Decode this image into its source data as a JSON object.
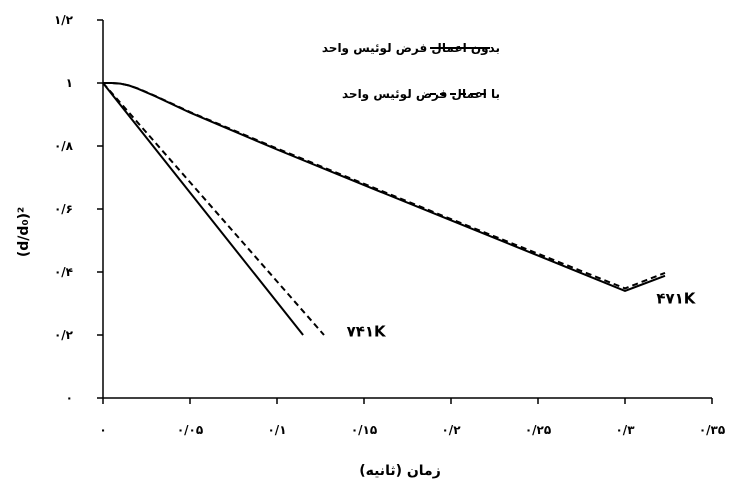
{
  "chart_data": {
    "type": "line",
    "xlabel": "زمان (ثانیه)",
    "ylabel": "(d/d₀)²",
    "xlim": [
      0,
      0.35
    ],
    "ylim": [
      0,
      1.2
    ],
    "x_ticks": [
      0,
      0.05,
      0.1,
      0.15,
      0.2,
      0.25,
      0.3,
      0.35
    ],
    "x_tick_labels": [
      "۰",
      "۰/۰۵",
      "۰/۱",
      "۰/۱۵",
      "۰/۲",
      "۰/۲۵",
      "۰/۳",
      "۰/۳۵"
    ],
    "y_ticks": [
      0,
      0.2,
      0.4,
      0.6,
      0.8,
      1.0,
      1.2
    ],
    "y_tick_labels": [
      "۰",
      "۰/۲",
      "۰/۴",
      "۰/۶",
      "۰/۸",
      "۱",
      "۱/۲"
    ],
    "grid": false,
    "legend_position": "top-right",
    "legend": [
      {
        "label": "بدون اعمال فرض لوئیس واحد",
        "style": "solid"
      },
      {
        "label": "با اعمال فرض لوئیس واحد",
        "style": "dashed"
      }
    ],
    "series": [
      {
        "style": "solid",
        "group": "741K",
        "x": [
          0,
          0.115
        ],
        "y": [
          1.0,
          0.2
        ]
      },
      {
        "style": "dashed",
        "group": "741K",
        "x": [
          0,
          0.127
        ],
        "y": [
          1.0,
          0.2
        ]
      },
      {
        "style": "solid",
        "group": "471K",
        "x": [
          0,
          0.005,
          0.01,
          0.015,
          0.02,
          0.03,
          0.05,
          0.1,
          0.15,
          0.2,
          0.25,
          0.3,
          0.323
        ],
        "y": [
          1.0,
          1.0,
          0.998,
          0.992,
          0.982,
          0.958,
          0.906,
          0.789,
          0.676,
          0.564,
          0.452,
          0.34,
          0.388
        ]
      },
      {
        "style": "dashed",
        "group": "471K",
        "x": [
          0,
          0.005,
          0.01,
          0.015,
          0.02,
          0.03,
          0.05,
          0.1,
          0.15,
          0.2,
          0.25,
          0.3,
          0.323
        ],
        "y": [
          1.0,
          1.0,
          0.998,
          0.992,
          0.983,
          0.959,
          0.908,
          0.792,
          0.68,
          0.568,
          0.458,
          0.348,
          0.397
        ]
      }
    ],
    "annotations": [
      {
        "text": "۷۴۱K",
        "x": 0.14,
        "y": 0.195
      },
      {
        "text": "۴۷۱K",
        "x": 0.318,
        "y": 0.3
      }
    ]
  }
}
